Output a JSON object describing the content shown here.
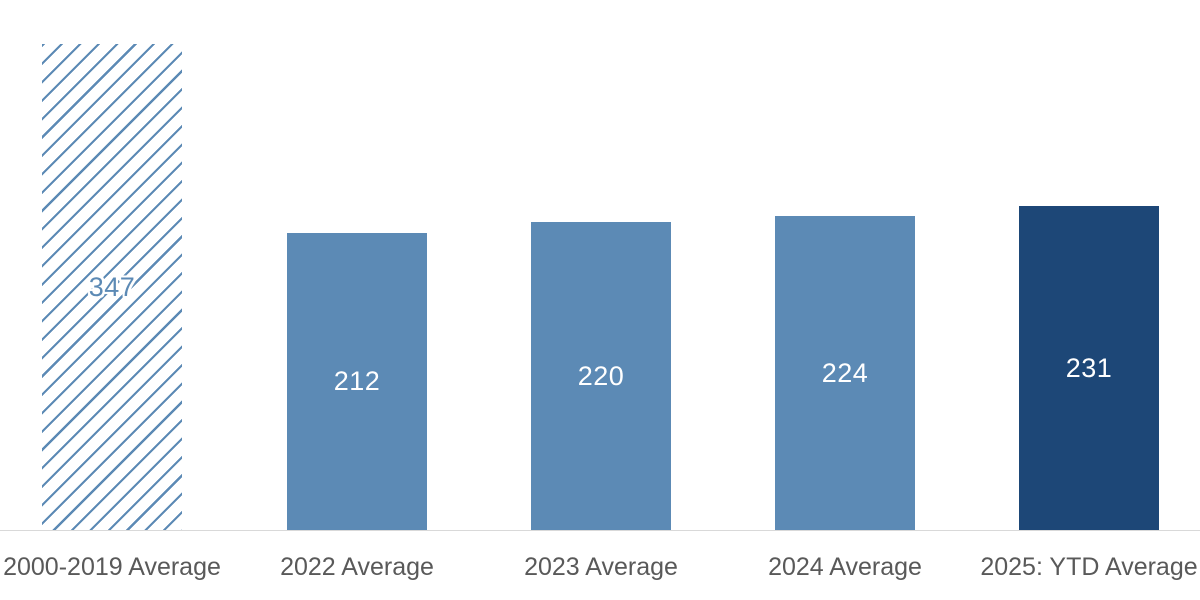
{
  "chart_data": {
    "type": "bar",
    "categories": [
      "2000-2019 Average",
      "2022 Average",
      "2023 Average",
      "2024 Average",
      "2025: YTD Average"
    ],
    "values": [
      347,
      212,
      220,
      224,
      231
    ],
    "bar_styles": [
      "hatched",
      "solid",
      "solid",
      "solid",
      "dark"
    ],
    "value_label_position": "inside-center",
    "title": "",
    "xlabel": "",
    "ylabel": "",
    "ylim": [
      0,
      380
    ],
    "grid": false,
    "legend": "none",
    "colors": {
      "bar_blue": "#5C8AB5",
      "bar_navy": "#1D4777",
      "hatch_blue": "#5C8AB5",
      "axis_line": "#D9D9D9",
      "category_label": "#595959",
      "value_label": "#FFFFFF",
      "hatch_value_label": "#5C8AB5",
      "background": "#FFFFFF"
    }
  }
}
